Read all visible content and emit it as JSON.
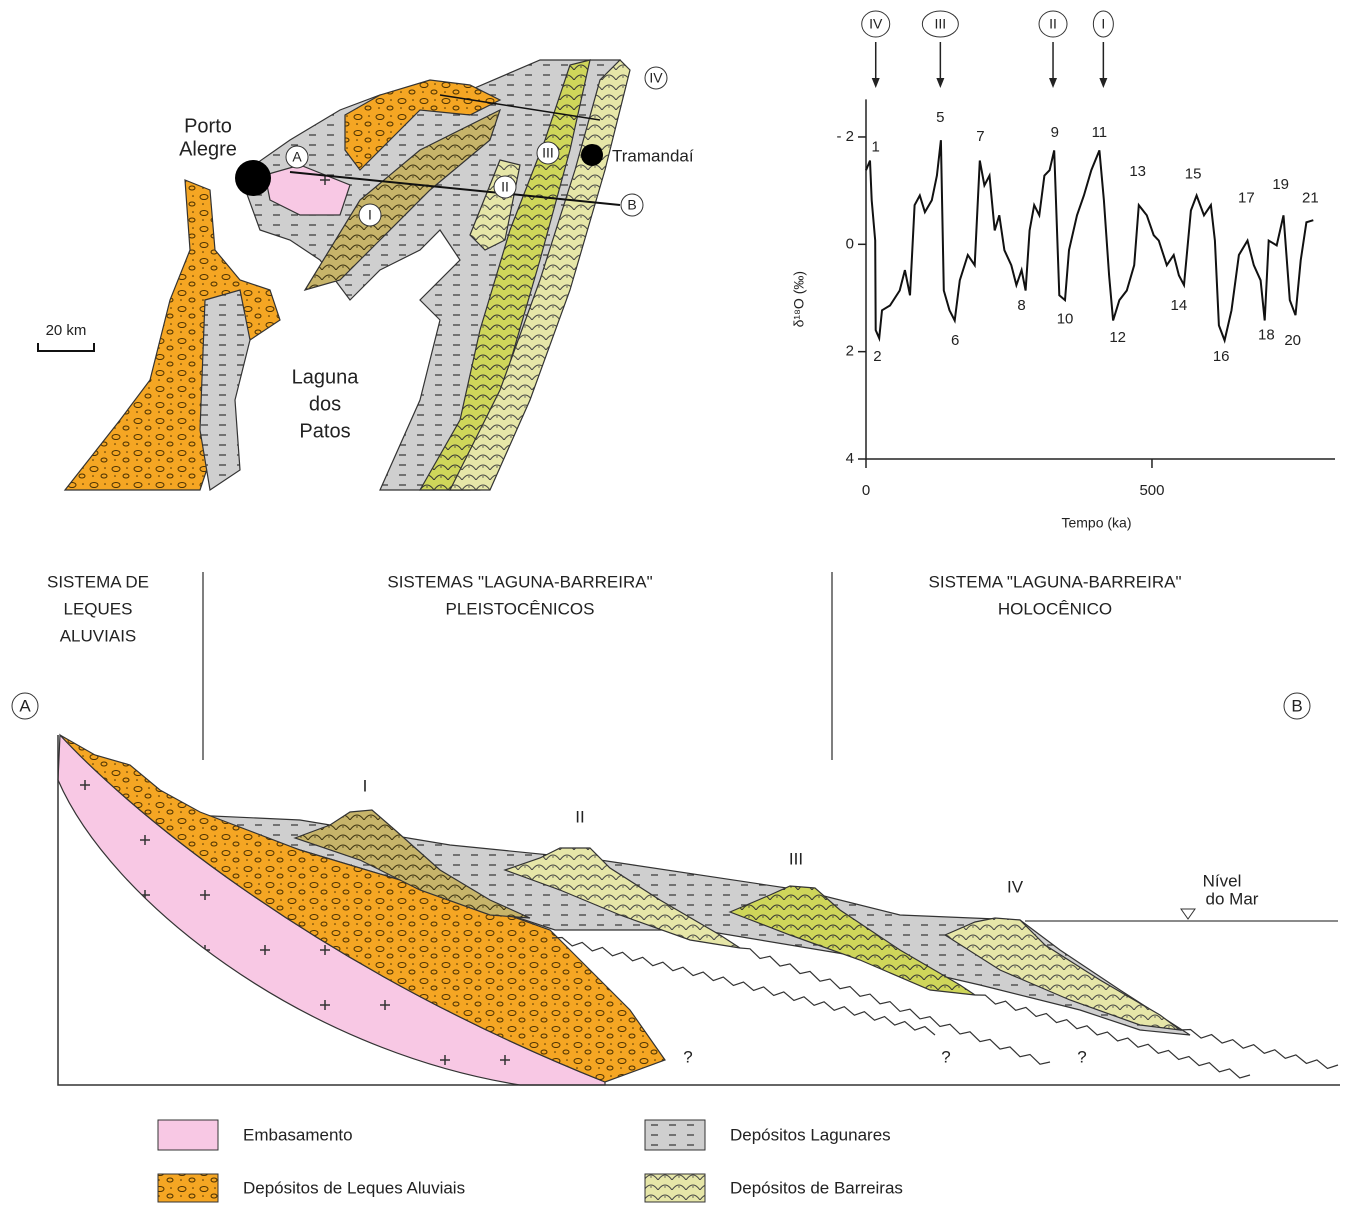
{
  "map": {
    "city": [
      "Porto",
      "Alegre"
    ],
    "town": "Tramandaí",
    "scale": "20 km",
    "lagoon": [
      "Laguna",
      "dos",
      "Patos"
    ],
    "points": [
      "A",
      "B"
    ],
    "barriers": [
      "I",
      "II",
      "III",
      "IV"
    ]
  },
  "chart_data": {
    "type": "line",
    "x_label": "Tempo (ka)",
    "y_label": "δ¹⁸O (‰)",
    "x": [
      0,
      7,
      10,
      16,
      17,
      23,
      28,
      42,
      59,
      68,
      77,
      85,
      94,
      103,
      115,
      124,
      131,
      136,
      146,
      155,
      164,
      178,
      190,
      199,
      207,
      216,
      225,
      233,
      242,
      254,
      263,
      272,
      279,
      286,
      294,
      303,
      312,
      321,
      329,
      338,
      348,
      355,
      369,
      381,
      394,
      408,
      416,
      425,
      432,
      443,
      456,
      469,
      477,
      491,
      503,
      512,
      526,
      538,
      547,
      556,
      568,
      578,
      591,
      603,
      610,
      617,
      627,
      639,
      652,
      667,
      678,
      690,
      697,
      704,
      718,
      730,
      741,
      751,
      760,
      770,
      782
    ],
    "values": [
      -1.38,
      -1.56,
      -0.82,
      -0.07,
      1.6,
      1.75,
      1.23,
      1.14,
      0.86,
      0.48,
      0.95,
      -0.73,
      -0.91,
      -0.6,
      -0.82,
      -1.28,
      -1.94,
      0.86,
      1.23,
      1.42,
      0.67,
      0.2,
      0.39,
      -1.56,
      -1.1,
      -1.28,
      -0.26,
      -0.54,
      0.11,
      0.39,
      0.76,
      0.48,
      0.86,
      -0.26,
      -0.73,
      -0.54,
      -1.28,
      -1.38,
      -1.75,
      0.95,
      1.04,
      0.11,
      -0.54,
      -0.91,
      -1.38,
      -1.75,
      -0.82,
      0.58,
      1.42,
      1.04,
      0.86,
      0.39,
      -0.73,
      -0.54,
      -0.17,
      -0.07,
      0.39,
      0.2,
      0.58,
      0.76,
      -0.63,
      -0.91,
      -0.54,
      -0.73,
      -0.07,
      1.51,
      1.79,
      1.23,
      0.2,
      -0.07,
      0.39,
      0.67,
      1.42,
      -0.07,
      0.02,
      -0.54,
      1.04,
      1.32,
      0.3,
      -0.41,
      -0.45
    ],
    "color": "#111111",
    "xlim": [
      0,
      820
    ],
    "xticks": [
      0,
      500
    ],
    "ylim": [
      4,
      -2.7
    ],
    "yticks": [
      {
        "value": -2,
        "label": "- 2"
      },
      0,
      2,
      4
    ],
    "annotations": [
      {
        "text": "1",
        "x": 17,
        "y": -1.8
      },
      {
        "text": "2",
        "x": 20,
        "y": 2.1
      },
      {
        "text": "5",
        "x": 130,
        "y": -2.35
      },
      {
        "text": "6",
        "x": 156,
        "y": 1.8
      },
      {
        "text": "7",
        "x": 200,
        "y": -2
      },
      {
        "text": "8",
        "x": 272,
        "y": 1.15
      },
      {
        "text": "9",
        "x": 330,
        "y": -2.07
      },
      {
        "text": "10",
        "x": 348,
        "y": 1.4
      },
      {
        "text": "11",
        "x": 408,
        "y": -2.07
      },
      {
        "text": "12",
        "x": 440,
        "y": 1.75
      },
      {
        "text": "13",
        "x": 475,
        "y": -1.35
      },
      {
        "text": "14",
        "x": 547,
        "y": 1.15
      },
      {
        "text": "15",
        "x": 572,
        "y": -1.3
      },
      {
        "text": "16",
        "x": 621,
        "y": 2.1
      },
      {
        "text": "17",
        "x": 665,
        "y": -0.85
      },
      {
        "text": "18",
        "x": 700,
        "y": 1.7
      },
      {
        "text": "19",
        "x": 725,
        "y": -1.1
      },
      {
        "text": "20",
        "x": 746,
        "y": 1.8
      },
      {
        "text": "21",
        "x": 777,
        "y": -0.85
      }
    ],
    "markers": [
      {
        "label": "IV",
        "x": 17
      },
      {
        "label": "III",
        "x": 130
      },
      {
        "label": "II",
        "x": 327
      },
      {
        "label": "I",
        "x": 415
      }
    ]
  },
  "section": {
    "headers": [
      [
        "SISTEMA DE",
        "LEQUES",
        "ALUVIAIS"
      ],
      [
        "SISTEMAS \"LAGUNA-BARREIRA\"",
        "PLEISTOCÊNICOS"
      ],
      [
        "SISTEMA \"LAGUNA-BARREIRA\"",
        "HOLOCÊNICO"
      ]
    ],
    "ends": [
      "A",
      "B"
    ],
    "barriers": [
      "I",
      "II",
      "III",
      "IV"
    ],
    "sea_level": [
      "Nível",
      "do Mar"
    ],
    "unknown": [
      "?",
      "?",
      "?"
    ]
  },
  "legend": [
    "Embasamento",
    "Depósitos de Leques Aluviais",
    "Depósitos Lagunares",
    "Depósitos de Barreiras"
  ]
}
